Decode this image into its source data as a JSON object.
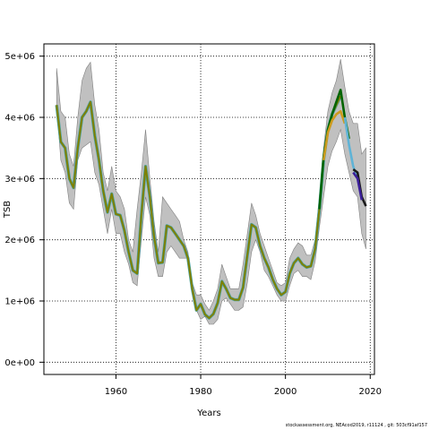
{
  "chart_data": {
    "type": "line",
    "xlabel": "Years",
    "ylabel": "TSB",
    "xlim": [
      1943,
      2021
    ],
    "ylim": [
      -200000,
      5200000
    ],
    "x_ticks": [
      1960,
      1980,
      2000,
      2020
    ],
    "y_ticks": [
      0,
      1000000,
      2000000,
      3000000,
      4000000,
      5000000
    ],
    "y_tick_labels": [
      "0e+00",
      "1e+06",
      "2e+06",
      "3e+06",
      "4e+06",
      "5e+06"
    ],
    "grid": "dotted",
    "footer_text": "stockassessment.org, NEAcod2019, r11124 , git: 503cf91af157",
    "colors": {
      "band": "#c0c0c0",
      "band_edge": "#808080",
      "main": "#808000",
      "run_2013": "#006400",
      "run_2015": "#cd9b1d",
      "run_2016": "#5fb3d6",
      "run_2018": "#1a1a1a",
      "run_2019": "#3b1f99"
    },
    "band": {
      "x": [
        1946,
        1947,
        1948,
        1949,
        1950,
        1951,
        1952,
        1953,
        1954,
        1955,
        1956,
        1957,
        1958,
        1959,
        1960,
        1961,
        1962,
        1963,
        1964,
        1965,
        1966,
        1967,
        1968,
        1969,
        1970,
        1971,
        1972,
        1973,
        1974,
        1975,
        1976,
        1977,
        1978,
        1979,
        1980,
        1981,
        1982,
        1983,
        1984,
        1985,
        1986,
        1987,
        1988,
        1989,
        1990,
        1991,
        1992,
        1993,
        1994,
        1995,
        1996,
        1997,
        1998,
        1999,
        2000,
        2001,
        2002,
        2003,
        2004,
        2005,
        2006,
        2007,
        2008,
        2009,
        2010,
        2011,
        2012,
        2013,
        2014,
        2015,
        2016,
        2017,
        2018,
        2019
      ],
      "upper": [
        4800000,
        4100000,
        4000000,
        3400000,
        3200000,
        4000000,
        4600000,
        4800000,
        4900000,
        4200000,
        3800000,
        3100000,
        2800000,
        3200000,
        2800000,
        2700000,
        2500000,
        2000000,
        1800000,
        2500000,
        3100000,
        3800000,
        3000000,
        2300000,
        1800000,
        2700000,
        2600000,
        2500000,
        2400000,
        2300000,
        2000000,
        1800000,
        1300000,
        1100000,
        1100000,
        950000,
        850000,
        1000000,
        1200000,
        1600000,
        1400000,
        1200000,
        1200000,
        1200000,
        1600000,
        2100000,
        2600000,
        2400000,
        2100000,
        1900000,
        1700000,
        1500000,
        1300000,
        1250000,
        1300000,
        1700000,
        1850000,
        1950000,
        1900000,
        1750000,
        1750000,
        2000000,
        2700000,
        3500000,
        4100000,
        4400000,
        4600000,
        4950000,
        4500000,
        4100000,
        3900000,
        3900000,
        3400000,
        3500000
      ],
      "lower": [
        4200000,
        3300000,
        3100000,
        2600000,
        2500000,
        3300000,
        3500000,
        3550000,
        3600000,
        3100000,
        2900000,
        2500000,
        2100000,
        2500000,
        2100000,
        2100000,
        1800000,
        1600000,
        1300000,
        1250000,
        2000000,
        2700000,
        2400000,
        1700000,
        1400000,
        1400000,
        1800000,
        1900000,
        1800000,
        1700000,
        1700000,
        1700000,
        1200000,
        850000,
        700000,
        750000,
        620000,
        620000,
        700000,
        1000000,
        1050000,
        950000,
        850000,
        850000,
        900000,
        1300000,
        1800000,
        2000000,
        1800000,
        1500000,
        1400000,
        1250000,
        1100000,
        1000000,
        1000000,
        1250000,
        1450000,
        1500000,
        1400000,
        1400000,
        1350000,
        1650000,
        2200000,
        2700000,
        3200000,
        3450000,
        3600000,
        3800000,
        3400000,
        3100000,
        2800000,
        2700000,
        2100000,
        1850000
      ]
    },
    "series": [
      {
        "x": [
          1946,
          1947,
          1948,
          1949,
          1950,
          1951,
          1952,
          1953,
          1954,
          1955,
          1956,
          1957,
          1958,
          1959,
          1960,
          1961,
          1962,
          1963,
          1964,
          1965,
          1966,
          1967,
          1968,
          1969,
          1970,
          1971,
          1972,
          1973,
          1974,
          1975,
          1976,
          1977,
          1978,
          1979,
          1980,
          1981,
          1982,
          1983,
          1984,
          1985,
          1986,
          1987,
          1988,
          1989,
          1990,
          1991,
          1992,
          1993,
          1994,
          1995,
          1996,
          1997,
          1998,
          1999,
          2000,
          2001,
          2002,
          2003,
          2004,
          2005,
          2006,
          2007,
          2008,
          2009,
          2010,
          2011,
          2012,
          2013
        ],
        "values": [
          4200000,
          3600000,
          3500000,
          3000000,
          2850000,
          3500000,
          4000000,
          4100000,
          4250000,
          3700000,
          3300000,
          2800000,
          2450000,
          2750000,
          2420000,
          2400000,
          2150000,
          1800000,
          1500000,
          1450000,
          2400000,
          3200000,
          2700000,
          2050000,
          1620000,
          1630000,
          2230000,
          2200000,
          2100000,
          2000000,
          1900000,
          1700000,
          1200000,
          850000,
          950000,
          780000,
          720000,
          790000,
          970000,
          1320000,
          1200000,
          1050000,
          1020000,
          1020000,
          1220000,
          1750000,
          2250000,
          2200000,
          1900000,
          1700000,
          1550000,
          1350000,
          1200000,
          1100000,
          1150000,
          1450000,
          1620000,
          1700000,
          1600000,
          1550000,
          1570000,
          1850000,
          2500000,
          3300000,
          3800000,
          4050000,
          4200000,
          4350000
        ],
        "style": "main"
      },
      {
        "x": [
          2008,
          2009,
          2010,
          2011,
          2012,
          2013,
          2014,
          2015
        ],
        "values": [
          2500000,
          3350000,
          3800000,
          4050000,
          4250000,
          4450000,
          4000000,
          3650000
        ],
        "style": "run_2013"
      },
      {
        "x": [
          2009,
          2010,
          2011,
          2012,
          2013,
          2014
        ],
        "values": [
          3300000,
          3750000,
          3950000,
          4050000,
          4100000,
          3900000
        ],
        "style": "run_2015"
      },
      {
        "x": [
          2014,
          2015,
          2016,
          2017
        ],
        "values": [
          4000000,
          3550000,
          3200000,
          3000000
        ],
        "style": "run_2016"
      },
      {
        "x": [
          2016,
          2017,
          2018,
          2019
        ],
        "values": [
          3150000,
          3100000,
          2700000,
          2550000
        ],
        "style": "run_2018"
      },
      {
        "x": [
          2016,
          2017,
          2018
        ],
        "values": [
          3100000,
          3000000,
          2650000
        ],
        "style": "run_2019"
      }
    ]
  }
}
